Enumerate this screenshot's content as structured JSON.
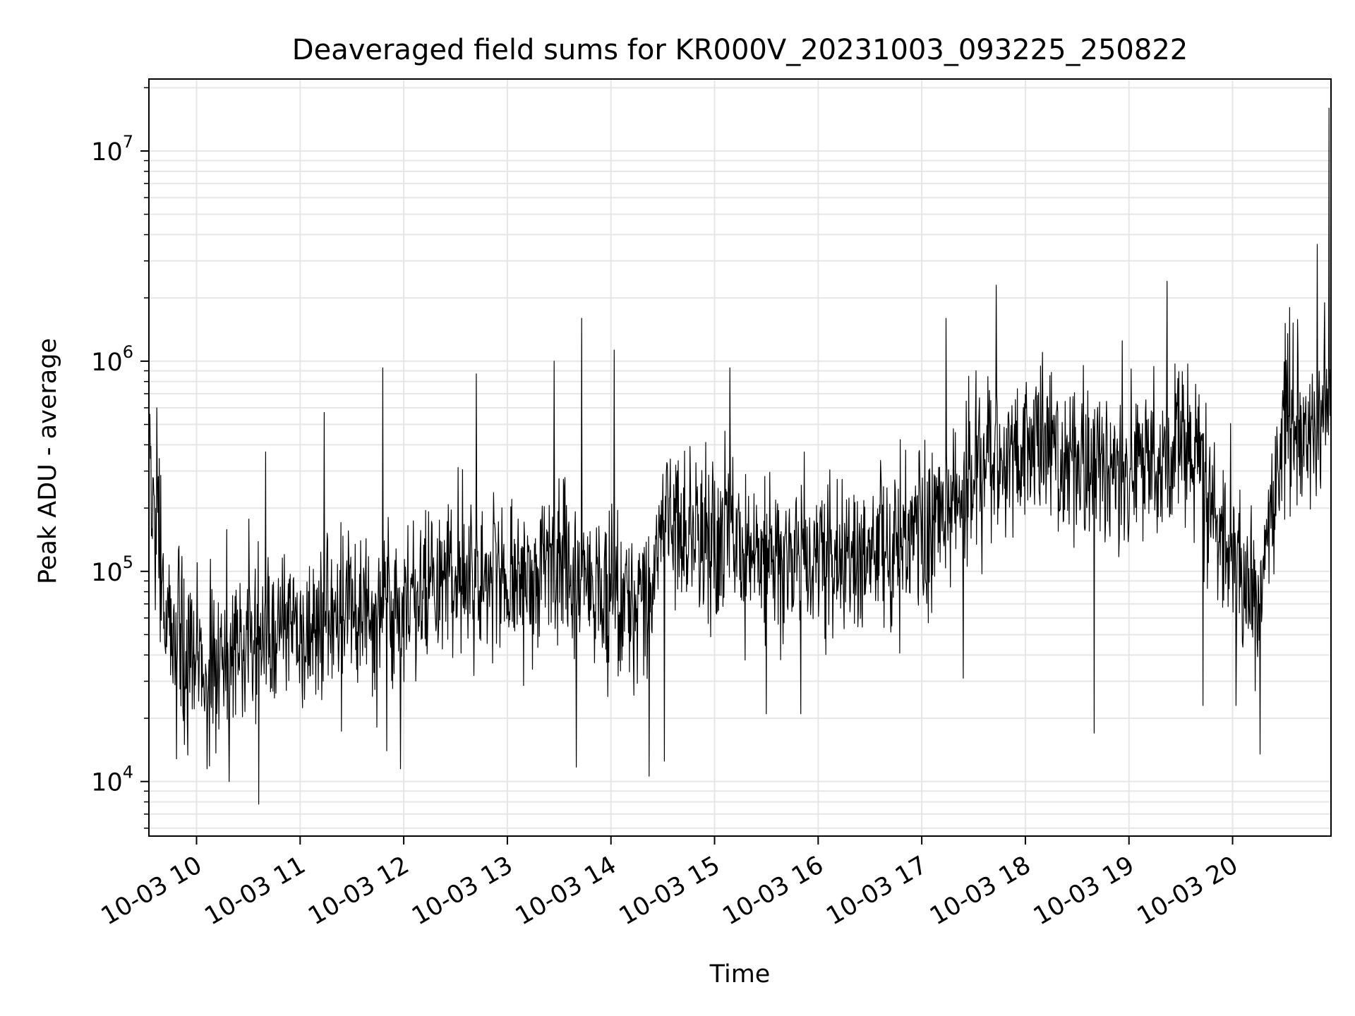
{
  "chart_data": {
    "type": "line",
    "title": "Deaveraged field sums for KR000V_20231003_093225_250822",
    "xlabel": "Time",
    "ylabel": "Peak ADU - average",
    "y_scale": "log",
    "grid": true,
    "grid_minor": true,
    "colors": {
      "line": "#000000",
      "grid": "#e6e6e6",
      "axes": "#000000",
      "background": "#ffffff"
    },
    "xlim": [
      "2023-10-03T09:32:25",
      "2023-10-03T20:57:00"
    ],
    "ylim": [
      5500,
      22000000
    ],
    "x_tick_labels": [
      "10-03 10",
      "10-03 11",
      "10-03 12",
      "10-03 13",
      "10-03 14",
      "10-03 15",
      "10-03 16",
      "10-03 17",
      "10-03 18",
      "10-03 19",
      "10-03 20"
    ],
    "x_tick_values": [
      "2023-10-03T10:00",
      "2023-10-03T11:00",
      "2023-10-03T12:00",
      "2023-10-03T13:00",
      "2023-10-03T14:00",
      "2023-10-03T15:00",
      "2023-10-03T16:00",
      "2023-10-03T17:00",
      "2023-10-03T18:00",
      "2023-10-03T19:00",
      "2023-10-03T20:00"
    ],
    "y_tick_values": [
      10000,
      100000,
      1000000,
      10000000
    ],
    "y_tick_labels": [
      {
        "base": "10",
        "exp": "4"
      },
      {
        "base": "10",
        "exp": "5"
      },
      {
        "base": "10",
        "exp": "6"
      },
      {
        "base": "10",
        "exp": "7"
      }
    ],
    "series": [
      {
        "style": "thin black noisy line",
        "trend_x": [
          "2023-10-03T09:33",
          "2023-10-03T09:45",
          "2023-10-03T10:00",
          "2023-10-03T10:30",
          "2023-10-03T11:00",
          "2023-10-03T11:30",
          "2023-10-03T12:00",
          "2023-10-03T12:30",
          "2023-10-03T13:00",
          "2023-10-03T13:30",
          "2023-10-03T14:00",
          "2023-10-03T14:20",
          "2023-10-03T14:30",
          "2023-10-03T15:00",
          "2023-10-03T15:30",
          "2023-10-03T16:00",
          "2023-10-03T16:30",
          "2023-10-03T17:00",
          "2023-10-03T17:30",
          "2023-10-03T18:00",
          "2023-10-03T18:30",
          "2023-10-03T19:00",
          "2023-10-03T19:30",
          "2023-10-03T19:50",
          "2023-10-03T20:15",
          "2023-10-03T20:30",
          "2023-10-03T20:57"
        ],
        "trend_y": [
          250000,
          60000,
          40000,
          45000,
          55000,
          60000,
          65000,
          100000,
          80000,
          130000,
          65000,
          60000,
          180000,
          150000,
          120000,
          110000,
          120000,
          150000,
          300000,
          400000,
          350000,
          300000,
          450000,
          200000,
          70000,
          500000,
          600000
        ],
        "peaks": [
          {
            "x": "2023-10-03T09:37",
            "y": 600000
          },
          {
            "x": "2023-10-03T10:40",
            "y": 370000
          },
          {
            "x": "2023-10-03T11:14",
            "y": 570000
          },
          {
            "x": "2023-10-03T11:48",
            "y": 930000
          },
          {
            "x": "2023-10-03T12:42",
            "y": 870000
          },
          {
            "x": "2023-10-03T13:27",
            "y": 1000000
          },
          {
            "x": "2023-10-03T13:43",
            "y": 1600000
          },
          {
            "x": "2023-10-03T14:02",
            "y": 1130000
          },
          {
            "x": "2023-10-03T15:09",
            "y": 930000
          },
          {
            "x": "2023-10-03T17:14",
            "y": 1600000
          },
          {
            "x": "2023-10-03T17:43",
            "y": 2300000
          },
          {
            "x": "2023-10-03T18:56",
            "y": 1250000
          },
          {
            "x": "2023-10-03T19:22",
            "y": 2400000
          },
          {
            "x": "2023-10-03T20:33",
            "y": 1800000
          },
          {
            "x": "2023-10-03T20:49",
            "y": 3600000
          },
          {
            "x": "2023-10-03T20:56",
            "y": 16000000
          }
        ],
        "troughs": [
          {
            "x": "2023-10-03T09:53",
            "y": 15000
          },
          {
            "x": "2023-10-03T10:06",
            "y": 11500
          },
          {
            "x": "2023-10-03T10:19",
            "y": 10000
          },
          {
            "x": "2023-10-03T10:36",
            "y": 7800
          },
          {
            "x": "2023-10-03T11:50",
            "y": 14000
          },
          {
            "x": "2023-10-03T11:58",
            "y": 11500
          },
          {
            "x": "2023-10-03T13:40",
            "y": 11700
          },
          {
            "x": "2023-10-03T14:22",
            "y": 10600
          },
          {
            "x": "2023-10-03T14:31",
            "y": 12500
          },
          {
            "x": "2023-10-03T15:30",
            "y": 21000
          },
          {
            "x": "2023-10-03T15:50",
            "y": 21000
          },
          {
            "x": "2023-10-03T17:24",
            "y": 31000
          },
          {
            "x": "2023-10-03T18:40",
            "y": 17000
          },
          {
            "x": "2023-10-03T19:43",
            "y": 23000
          },
          {
            "x": "2023-10-03T20:02",
            "y": 23000
          },
          {
            "x": "2023-10-03T20:16",
            "y": 13500
          }
        ]
      }
    ]
  }
}
